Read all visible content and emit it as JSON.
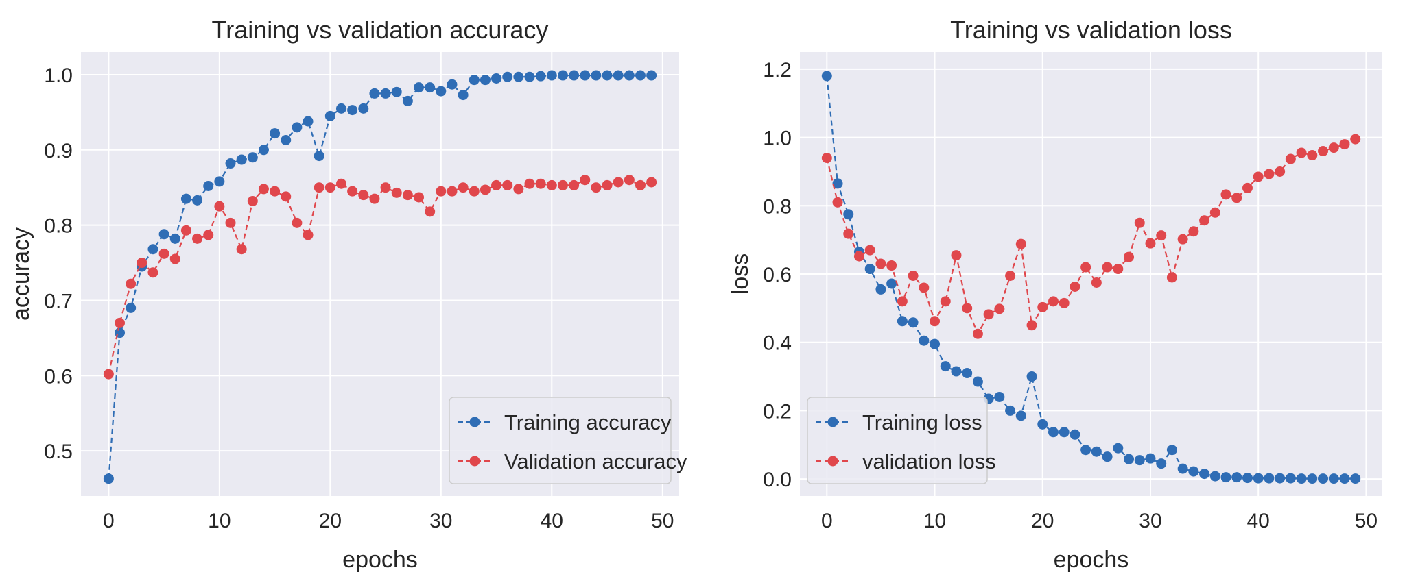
{
  "chart_data": [
    {
      "type": "line",
      "title": "Training vs validation accuracy",
      "xlabel": "epochs",
      "ylabel": "accuracy",
      "xlim": [
        -2.5,
        51.5
      ],
      "ylim": [
        0.44,
        1.03
      ],
      "xticks": [
        0,
        10,
        20,
        30,
        40,
        50
      ],
      "xtick_labels": [
        "0",
        "10",
        "20",
        "30",
        "40",
        "50"
      ],
      "yticks": [
        0.5,
        0.6,
        0.7,
        0.8,
        0.9,
        1.0
      ],
      "ytick_labels": [
        "0.5",
        "0.6",
        "0.7",
        "0.8",
        "0.9",
        "1.0"
      ],
      "grid": true,
      "legend_position": "lower-right",
      "series": [
        {
          "name": "Training accuracy",
          "color": "#2f6db5",
          "x": [
            0,
            1,
            2,
            3,
            4,
            5,
            6,
            7,
            8,
            9,
            10,
            11,
            12,
            13,
            14,
            15,
            16,
            17,
            18,
            19,
            20,
            21,
            22,
            23,
            24,
            25,
            26,
            27,
            28,
            29,
            30,
            31,
            32,
            33,
            34,
            35,
            36,
            37,
            38,
            39,
            40,
            41,
            42,
            43,
            44,
            45,
            46,
            47,
            48,
            49
          ],
          "values": [
            0.463,
            0.657,
            0.69,
            0.745,
            0.768,
            0.788,
            0.782,
            0.835,
            0.833,
            0.852,
            0.858,
            0.882,
            0.887,
            0.89,
            0.9,
            0.922,
            0.913,
            0.93,
            0.938,
            0.892,
            0.945,
            0.955,
            0.953,
            0.955,
            0.975,
            0.975,
            0.977,
            0.965,
            0.983,
            0.983,
            0.978,
            0.987,
            0.973,
            0.993,
            0.993,
            0.995,
            0.997,
            0.997,
            0.997,
            0.998,
            0.999,
            0.999,
            0.999,
            0.999,
            0.999,
            0.999,
            0.999,
            0.999,
            0.999,
            0.999
          ]
        },
        {
          "name": "Validation accuracy",
          "color": "#e0474c",
          "x": [
            0,
            1,
            2,
            3,
            4,
            5,
            6,
            7,
            8,
            9,
            10,
            11,
            12,
            13,
            14,
            15,
            16,
            17,
            18,
            19,
            20,
            21,
            22,
            23,
            24,
            25,
            26,
            27,
            28,
            29,
            30,
            31,
            32,
            33,
            34,
            35,
            36,
            37,
            38,
            39,
            40,
            41,
            42,
            43,
            44,
            45,
            46,
            47,
            48,
            49
          ],
          "values": [
            0.602,
            0.67,
            0.722,
            0.75,
            0.737,
            0.762,
            0.755,
            0.793,
            0.782,
            0.787,
            0.825,
            0.803,
            0.768,
            0.832,
            0.848,
            0.845,
            0.838,
            0.803,
            0.787,
            0.85,
            0.85,
            0.855,
            0.845,
            0.84,
            0.835,
            0.85,
            0.843,
            0.84,
            0.837,
            0.818,
            0.845,
            0.845,
            0.85,
            0.845,
            0.847,
            0.853,
            0.853,
            0.848,
            0.855,
            0.855,
            0.853,
            0.853,
            0.853,
            0.86,
            0.85,
            0.853,
            0.857,
            0.86,
            0.853,
            0.857
          ]
        }
      ]
    },
    {
      "type": "line",
      "title": "Training vs validation loss",
      "xlabel": "epochs",
      "ylabel": "loss",
      "xlim": [
        -2.5,
        51.5
      ],
      "ylim": [
        -0.05,
        1.25
      ],
      "xticks": [
        0,
        10,
        20,
        30,
        40,
        50
      ],
      "xtick_labels": [
        "0",
        "10",
        "20",
        "30",
        "40",
        "50"
      ],
      "yticks": [
        0.0,
        0.2,
        0.4,
        0.6,
        0.8,
        1.0,
        1.2
      ],
      "ytick_labels": [
        "0.0",
        "0.2",
        "0.4",
        "0.6",
        "0.8",
        "1.0",
        "1.2"
      ],
      "grid": true,
      "legend_position": "lower-left",
      "series": [
        {
          "name": "Training loss",
          "color": "#2f6db5",
          "x": [
            0,
            1,
            2,
            3,
            4,
            5,
            6,
            7,
            8,
            9,
            10,
            11,
            12,
            13,
            14,
            15,
            16,
            17,
            18,
            19,
            20,
            21,
            22,
            23,
            24,
            25,
            26,
            27,
            28,
            29,
            30,
            31,
            32,
            33,
            34,
            35,
            36,
            37,
            38,
            39,
            40,
            41,
            42,
            43,
            44,
            45,
            46,
            47,
            48,
            49
          ],
          "values": [
            1.18,
            0.865,
            0.775,
            0.665,
            0.615,
            0.555,
            0.572,
            0.462,
            0.458,
            0.405,
            0.395,
            0.33,
            0.315,
            0.31,
            0.285,
            0.235,
            0.24,
            0.2,
            0.185,
            0.3,
            0.16,
            0.137,
            0.137,
            0.13,
            0.085,
            0.08,
            0.065,
            0.09,
            0.058,
            0.055,
            0.06,
            0.045,
            0.085,
            0.03,
            0.022,
            0.015,
            0.008,
            0.005,
            0.005,
            0.003,
            0.002,
            0.002,
            0.002,
            0.002,
            0.001,
            0.001,
            0.001,
            0.001,
            0.001,
            0.001
          ]
        },
        {
          "name": "validation loss",
          "color": "#e0474c",
          "x": [
            0,
            1,
            2,
            3,
            4,
            5,
            6,
            7,
            8,
            9,
            10,
            11,
            12,
            13,
            14,
            15,
            16,
            17,
            18,
            19,
            20,
            21,
            22,
            23,
            24,
            25,
            26,
            27,
            28,
            29,
            30,
            31,
            32,
            33,
            34,
            35,
            36,
            37,
            38,
            39,
            40,
            41,
            42,
            43,
            44,
            45,
            46,
            47,
            48,
            49
          ],
          "values": [
            0.94,
            0.81,
            0.718,
            0.652,
            0.67,
            0.63,
            0.625,
            0.52,
            0.595,
            0.56,
            0.462,
            0.52,
            0.655,
            0.5,
            0.425,
            0.482,
            0.498,
            0.595,
            0.688,
            0.45,
            0.503,
            0.52,
            0.515,
            0.563,
            0.62,
            0.575,
            0.62,
            0.615,
            0.65,
            0.75,
            0.69,
            0.713,
            0.59,
            0.702,
            0.725,
            0.757,
            0.78,
            0.833,
            0.823,
            0.852,
            0.885,
            0.893,
            0.9,
            0.937,
            0.955,
            0.948,
            0.96,
            0.97,
            0.98,
            0.995
          ]
        }
      ]
    }
  ]
}
